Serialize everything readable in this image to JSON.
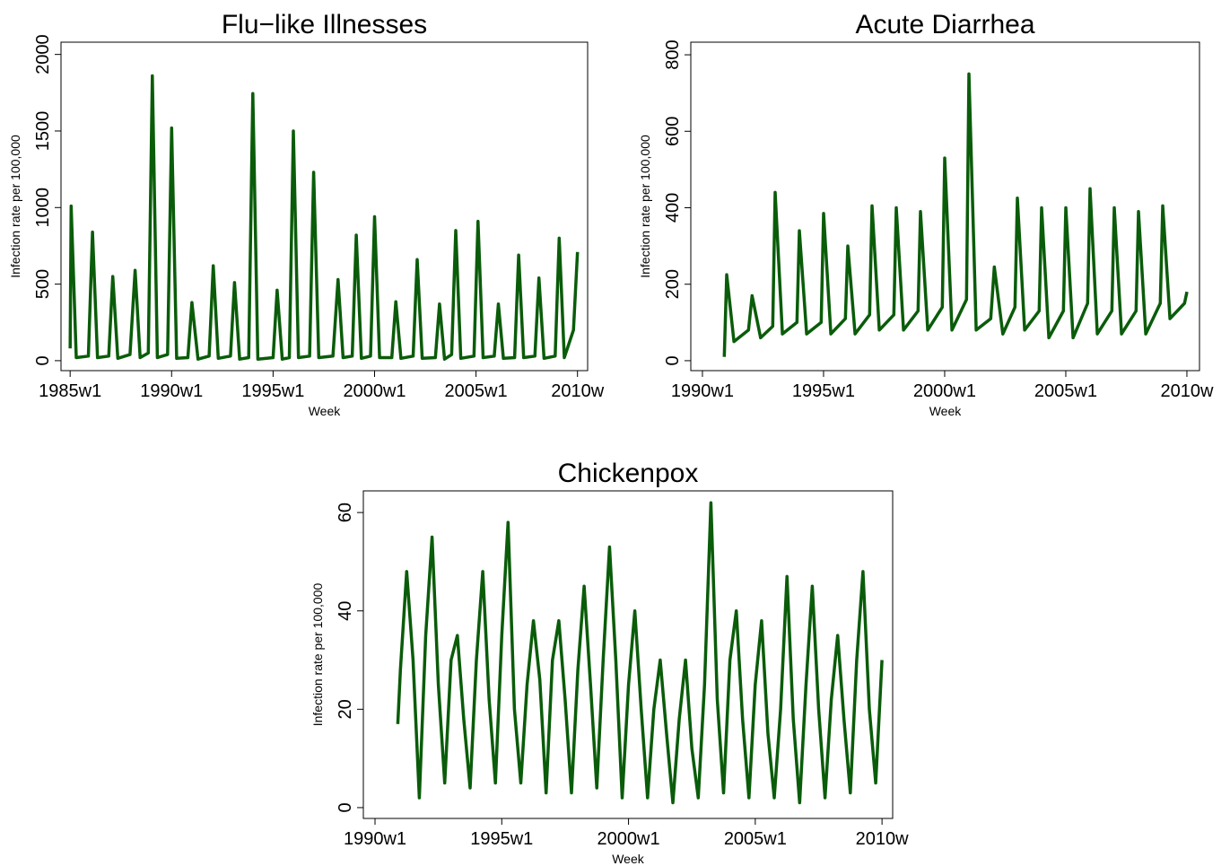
{
  "chart_data": [
    {
      "type": "line",
      "title": "Flu−like Illnesses",
      "xlabel": "Week",
      "ylabel": "Infection rate per 100,000",
      "color": "#0a5c0a",
      "x": [
        1985.0,
        1985.05,
        1985.3,
        1985.9,
        1986.1,
        1986.35,
        1986.9,
        1987.1,
        1987.35,
        1987.95,
        1988.2,
        1988.45,
        1988.85,
        1989.05,
        1989.3,
        1989.8,
        1990.0,
        1990.25,
        1990.8,
        1991.0,
        1991.3,
        1991.85,
        1992.05,
        1992.3,
        1992.9,
        1993.1,
        1993.35,
        1993.8,
        1994.0,
        1994.25,
        1995.0,
        1995.2,
        1995.45,
        1995.8,
        1996.0,
        1996.25,
        1996.8,
        1997.0,
        1997.25,
        1997.95,
        1998.2,
        1998.45,
        1998.9,
        1999.1,
        1999.35,
        1999.8,
        2000.0,
        2000.25,
        2000.85,
        2001.05,
        2001.3,
        2001.9,
        2002.1,
        2002.35,
        2003.0,
        2003.2,
        2003.45,
        2003.8,
        2004.0,
        2004.25,
        2004.9,
        2005.1,
        2005.35,
        2005.9,
        2006.1,
        2006.35,
        2006.9,
        2007.1,
        2007.35,
        2007.9,
        2008.1,
        2008.35,
        2008.9,
        2009.1,
        2009.35,
        2009.8,
        2010.0
      ],
      "values": [
        80,
        1010,
        20,
        30,
        840,
        20,
        30,
        550,
        15,
        40,
        590,
        20,
        50,
        1860,
        20,
        40,
        1520,
        15,
        20,
        380,
        10,
        30,
        620,
        15,
        30,
        510,
        10,
        20,
        1745,
        10,
        20,
        460,
        10,
        20,
        1500,
        20,
        30,
        1230,
        20,
        30,
        530,
        20,
        30,
        820,
        15,
        30,
        940,
        20,
        20,
        385,
        15,
        30,
        660,
        15,
        20,
        370,
        10,
        40,
        850,
        15,
        30,
        910,
        20,
        30,
        370,
        15,
        20,
        690,
        20,
        30,
        540,
        15,
        30,
        800,
        20,
        200,
        710
      ],
      "xlim": [
        1984.55,
        2010.5
      ],
      "ylim": [
        -65,
        2080
      ],
      "xticks": [
        {
          "value": 1985,
          "label": "1985w1"
        },
        {
          "value": 1990,
          "label": "1990w1"
        },
        {
          "value": 1995,
          "label": "1995w1"
        },
        {
          "value": 2000,
          "label": "2000w1"
        },
        {
          "value": 2005,
          "label": "2005w1"
        },
        {
          "value": 2010,
          "label": "2010w"
        }
      ],
      "yticks": [
        0,
        500,
        1000,
        1500,
        2000
      ]
    },
    {
      "type": "line",
      "title": "Acute Diarrhea",
      "xlabel": "Week",
      "ylabel": "Infection rate per 100,000",
      "color": "#0a5c0a",
      "x": [
        1990.9,
        1991.0,
        1991.3,
        1991.9,
        1992.05,
        1992.4,
        1992.9,
        1993.0,
        1993.3,
        1993.9,
        1994.0,
        1994.3,
        1994.9,
        1995.0,
        1995.3,
        1995.9,
        1996.0,
        1996.3,
        1996.9,
        1997.0,
        1997.3,
        1997.9,
        1998.0,
        1998.3,
        1998.9,
        1999.0,
        1999.3,
        1999.9,
        2000.0,
        2000.3,
        2000.9,
        2001.0,
        2001.3,
        2001.9,
        2002.05,
        2002.4,
        2002.9,
        2003.0,
        2003.3,
        2003.9,
        2004.0,
        2004.3,
        2004.9,
        2005.0,
        2005.3,
        2005.9,
        2006.0,
        2006.3,
        2006.9,
        2007.0,
        2007.3,
        2007.9,
        2008.0,
        2008.3,
        2008.9,
        2009.0,
        2009.3,
        2009.9,
        2010.0
      ],
      "values": [
        10,
        225,
        50,
        80,
        170,
        60,
        90,
        440,
        70,
        100,
        340,
        70,
        100,
        385,
        70,
        110,
        300,
        70,
        120,
        405,
        80,
        120,
        400,
        80,
        130,
        390,
        80,
        140,
        530,
        80,
        160,
        750,
        80,
        110,
        245,
        70,
        140,
        425,
        80,
        130,
        400,
        60,
        130,
        400,
        60,
        150,
        450,
        70,
        130,
        400,
        70,
        130,
        390,
        70,
        150,
        405,
        110,
        150,
        180
      ],
      "xlim": [
        1989.52,
        2010.52
      ],
      "ylim": [
        -26,
        833
      ],
      "xticks": [
        {
          "value": 1990,
          "label": "1990w1"
        },
        {
          "value": 1995,
          "label": "1995w1"
        },
        {
          "value": 2000,
          "label": "2000w1"
        },
        {
          "value": 2005,
          "label": "2005w1"
        },
        {
          "value": 2010,
          "label": "2010w"
        }
      ],
      "yticks": [
        0,
        200,
        400,
        600,
        800
      ]
    },
    {
      "type": "line",
      "title": "Chickenpox",
      "xlabel": "Week",
      "ylabel": "Infection rate per 100,000",
      "color": "#0a5c0a",
      "x": [
        1990.9,
        1991.0,
        1991.25,
        1991.5,
        1991.75,
        1992.0,
        1992.25,
        1992.5,
        1992.75,
        1993.0,
        1993.25,
        1993.5,
        1993.75,
        1994.0,
        1994.25,
        1994.5,
        1994.75,
        1995.0,
        1995.25,
        1995.5,
        1995.75,
        1996.0,
        1996.25,
        1996.5,
        1996.75,
        1997.0,
        1997.25,
        1997.5,
        1997.75,
        1998.0,
        1998.25,
        1998.5,
        1998.75,
        1999.0,
        1999.25,
        1999.5,
        1999.75,
        2000.0,
        2000.25,
        2000.5,
        2000.75,
        2001.0,
        2001.25,
        2001.5,
        2001.75,
        2002.0,
        2002.25,
        2002.5,
        2002.75,
        2003.0,
        2003.25,
        2003.5,
        2003.75,
        2004.0,
        2004.25,
        2004.5,
        2004.75,
        2005.0,
        2005.25,
        2005.5,
        2005.75,
        2006.0,
        2006.25,
        2006.5,
        2006.75,
        2007.0,
        2007.25,
        2007.5,
        2007.75,
        2008.0,
        2008.25,
        2008.5,
        2008.75,
        2009.0,
        2009.25,
        2009.5,
        2009.75,
        2010.0
      ],
      "values": [
        17,
        28,
        48,
        30,
        2,
        35,
        55,
        25,
        5,
        30,
        35,
        18,
        4,
        30,
        48,
        22,
        5,
        35,
        58,
        20,
        5,
        25,
        38,
        26,
        3,
        30,
        38,
        22,
        3,
        28,
        45,
        25,
        4,
        30,
        53,
        30,
        2,
        25,
        40,
        20,
        2,
        20,
        30,
        15,
        1,
        18,
        30,
        12,
        2,
        25,
        62,
        22,
        3,
        30,
        40,
        18,
        2,
        25,
        38,
        15,
        2,
        20,
        47,
        18,
        1,
        25,
        45,
        20,
        2,
        22,
        35,
        18,
        3,
        30,
        48,
        20,
        5,
        30
      ],
      "xlim": [
        1989.54,
        2010.42
      ],
      "ylim": [
        -2.2,
        64.4
      ],
      "xticks": [
        {
          "value": 1990,
          "label": "1990w1"
        },
        {
          "value": 1995,
          "label": "1995w1"
        },
        {
          "value": 2000,
          "label": "2000w1"
        },
        {
          "value": 2005,
          "label": "2005w1"
        },
        {
          "value": 2010,
          "label": "2010w"
        }
      ],
      "yticks": [
        0,
        20,
        40,
        60
      ]
    }
  ]
}
